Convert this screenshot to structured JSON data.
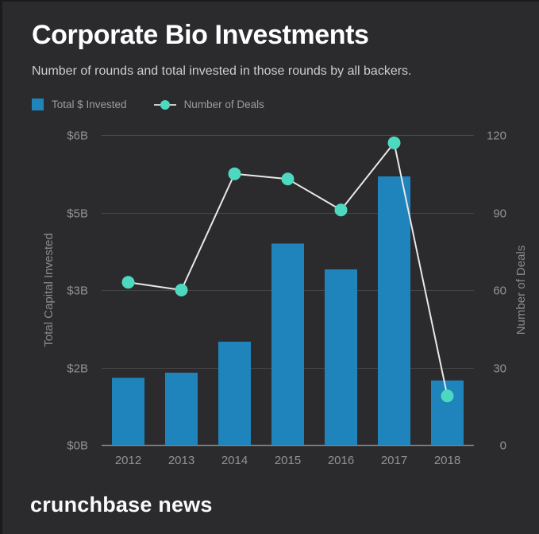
{
  "header": {
    "title": "Corporate Bio Investments",
    "subtitle": "Number of rounds and total invested in those rounds by all backers."
  },
  "legend": [
    {
      "label": "Total $ Invested",
      "marker": "square",
      "color": "#1f84bc"
    },
    {
      "label": "Number of Deals",
      "marker": "line-dot",
      "color": "#4dd9c0",
      "line_color": "#c9c9c9"
    }
  ],
  "footer": {
    "brand": "crunchbase news"
  },
  "colors": {
    "background": "#2b2b2d",
    "bar": "#1f84bc",
    "marker": "#4dd9c0",
    "line": "#e8e8e8",
    "gridline": "rgba(255,255,255,0.13)",
    "baseline": "rgba(255,255,255,0.42)",
    "tick_text": "#929294",
    "axis_title_text": "#8b8b8d",
    "title_text": "#ffffff",
    "subtitle_text": "#cdcdd0"
  },
  "chart_data": {
    "type": "bar",
    "subtype": "bar+line combo, dual axis",
    "categories": [
      "2012",
      "2013",
      "2014",
      "2015",
      "2016",
      "2017",
      "2018"
    ],
    "series": [
      {
        "name": "Total $ Invested",
        "type": "bar",
        "axis": "left",
        "unit": "billion USD",
        "values": [
          1.3,
          1.4,
          2.0,
          3.9,
          3.4,
          5.2,
          1.25
        ]
      },
      {
        "name": "Number of Deals",
        "type": "line",
        "axis": "right",
        "unit": "deals",
        "values": [
          63,
          60,
          105,
          103,
          91,
          117,
          19
        ]
      }
    ],
    "title": "Corporate Bio Investments",
    "xlabel": "",
    "left_axis": {
      "title": "Total Capital Invested",
      "tick_labels": [
        "$0B",
        "$2B",
        "$3B",
        "$5B",
        "$6B"
      ],
      "tick_values": [
        0,
        1.5,
        3,
        4.5,
        6
      ],
      "min": 0,
      "max": 6
    },
    "right_axis": {
      "title": "Number of Deals",
      "tick_labels": [
        "0",
        "30",
        "60",
        "90",
        "120"
      ],
      "tick_values": [
        0,
        30,
        60,
        90,
        120
      ],
      "min": 0,
      "max": 120
    },
    "grid": true,
    "legend_position": "top-left"
  }
}
